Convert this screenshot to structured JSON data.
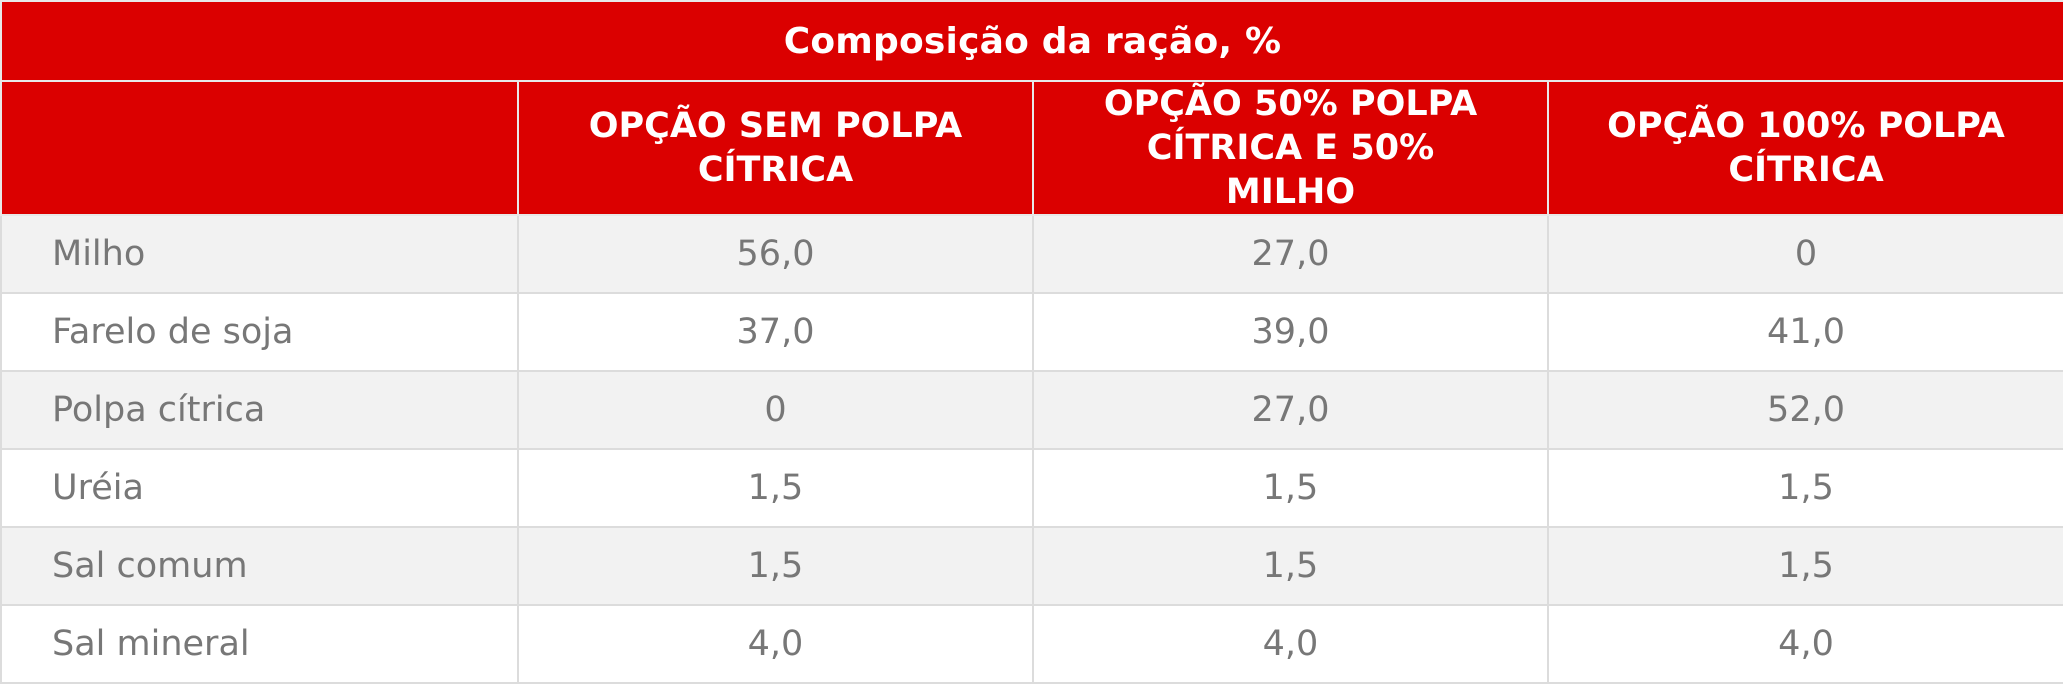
{
  "table": {
    "title": "Composição da ração, %",
    "columns": [
      "",
      "OPÇÃO SEM POLPA CÍTRICA",
      "OPÇÃO 50% POLPA CÍTRICA E 50% MILHO",
      "OPÇÃO 100% POLPA CÍTRICA"
    ],
    "rows": [
      {
        "label": "Milho",
        "values": [
          "56,0",
          "27,0",
          "0"
        ]
      },
      {
        "label": "Farelo de soja",
        "values": [
          "37,0",
          "39,0",
          "41,0"
        ]
      },
      {
        "label": "Polpa cítrica",
        "values": [
          "0",
          "27,0",
          "52,0"
        ]
      },
      {
        "label": "Uréia",
        "values": [
          "1,5",
          "1,5",
          "1,5"
        ]
      },
      {
        "label": "Sal comum",
        "values": [
          "1,5",
          "1,5",
          "1,5"
        ]
      },
      {
        "label": "Sal mineral",
        "values": [
          "4,0",
          "4,0",
          "4,0"
        ]
      }
    ]
  },
  "colors": {
    "header_bg": "#db0000",
    "header_text": "#ffffff",
    "row_alt_bg": "#f2f2f2",
    "row_bg": "#ffffff",
    "body_text": "#777777",
    "grid": "#dcdcdc"
  }
}
